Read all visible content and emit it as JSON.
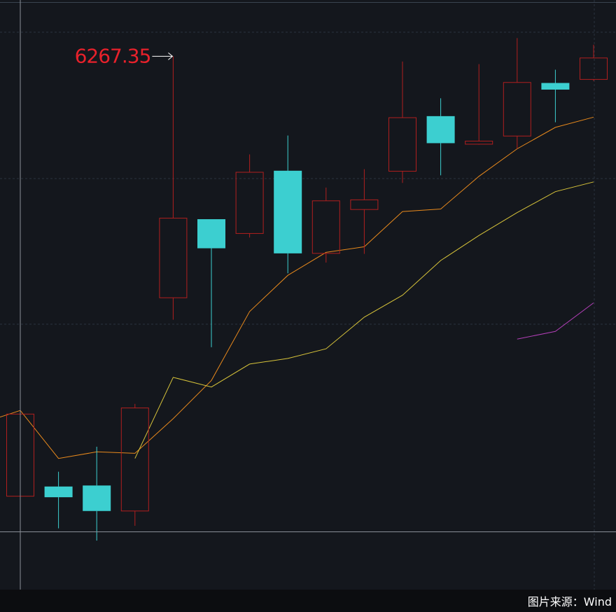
{
  "source_label": "图片来源：Wind",
  "colors": {
    "background": "#14171d",
    "up": "#b01f1f",
    "down": "#3ccfd0",
    "ma_fast": "#e8891c",
    "ma_slow": "#d8c43a",
    "ma_third": "#b33fb8",
    "annotation": "#e8212b",
    "grid": "#2a3340",
    "crosshair": "#8a8f98"
  },
  "chart_data": {
    "type": "candlestick",
    "ylim": [
      5200,
      6320
    ],
    "annotation": {
      "text": "6267.35",
      "value": 6267.35,
      "candle_index": 4
    },
    "candles": [
      {
        "open": 5405,
        "close": 5566,
        "high": 5615,
        "low": 5390
      },
      {
        "open": 5424,
        "close": 5403,
        "high": 5453,
        "low": 5342
      },
      {
        "open": 5426,
        "close": 5376,
        "high": 5502,
        "low": 5318
      },
      {
        "open": 5376,
        "close": 5578,
        "high": 5586,
        "low": 5347
      },
      {
        "open": 5794,
        "close": 5950,
        "high": 6267.35,
        "low": 5751
      },
      {
        "open": 5948,
        "close": 5891,
        "high": 5948,
        "low": 5697
      },
      {
        "open": 5920,
        "close": 6040,
        "high": 6075,
        "low": 5912
      },
      {
        "open": 6043,
        "close": 5881,
        "high": 6112,
        "low": 5842
      },
      {
        "open": 5881,
        "close": 5984,
        "high": 6010,
        "low": 5863
      },
      {
        "open": 5967,
        "close": 5986,
        "high": 6046,
        "low": 5880
      },
      {
        "open": 6042,
        "close": 6147,
        "high": 6257,
        "low": 6019
      },
      {
        "open": 6150,
        "close": 6097,
        "high": 6185,
        "low": 6034
      },
      {
        "open": 6095,
        "close": 6101,
        "high": 6252,
        "low": 6094
      },
      {
        "open": 6111,
        "close": 6216,
        "high": 6303,
        "low": 6086
      },
      {
        "open": 6215,
        "close": 6202,
        "high": 6241,
        "low": 6138
      },
      {
        "open": 6222,
        "close": 6264,
        "high": 6290,
        "low": 6219
      }
    ],
    "series": [
      {
        "values": [
          5573,
          5479,
          5492,
          5489,
          5557,
          5632,
          5767,
          5838,
          5883,
          5894,
          5963,
          5968,
          6032,
          6086,
          6128,
          6148
        ]
      },
      {
        "values": [
          null,
          null,
          null,
          5479,
          5638,
          5619,
          5664,
          5675,
          5694,
          5756,
          5799,
          5867,
          5916,
          5961,
          6002,
          6021
        ]
      },
      {
        "values": [
          null,
          null,
          null,
          null,
          null,
          null,
          null,
          null,
          null,
          null,
          null,
          null,
          null,
          5713,
          5728,
          5784
        ]
      }
    ]
  }
}
